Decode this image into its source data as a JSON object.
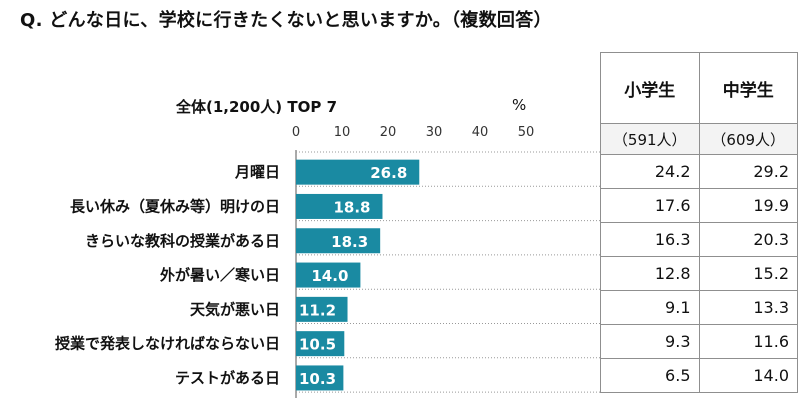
{
  "question": "Q.  どんな日に、学校に行きたくないと思いますか。（複数回答）",
  "colors": {
    "bar": "#1a8aa2",
    "bar_label": "#ffffff",
    "grid": "#999999"
  },
  "chart_data": {
    "type": "bar",
    "orientation": "horizontal",
    "title": "全体(1,200人) TOP 7",
    "unit": "%",
    "xlim": [
      0,
      50
    ],
    "ticks": [
      "0",
      "10",
      "20",
      "30",
      "40",
      "50"
    ],
    "categories": [
      "月曜日",
      "長い休み（夏休み等）明けの日",
      "きらいな教科の授業がある日",
      "外が暑い／寒い日",
      "天気が悪い日",
      "授業で発表しなければならない日",
      "テストがある日"
    ],
    "values": [
      26.8,
      18.8,
      18.3,
      14.0,
      11.2,
      10.5,
      10.3
    ],
    "value_labels": [
      "26.8",
      "18.8",
      "18.3",
      "14.0",
      "11.2",
      "10.5",
      "10.3"
    ]
  },
  "breakdown": {
    "columns": [
      {
        "name": "小学生",
        "n": "（591人）"
      },
      {
        "name": "中学生",
        "n": "（609人）"
      }
    ],
    "rows": [
      [
        "24.2",
        "29.2"
      ],
      [
        "17.6",
        "19.9"
      ],
      [
        "16.3",
        "20.3"
      ],
      [
        "12.8",
        "15.2"
      ],
      [
        "9.1",
        "13.3"
      ],
      [
        "9.3",
        "11.6"
      ],
      [
        "6.5",
        "14.0"
      ]
    ]
  }
}
